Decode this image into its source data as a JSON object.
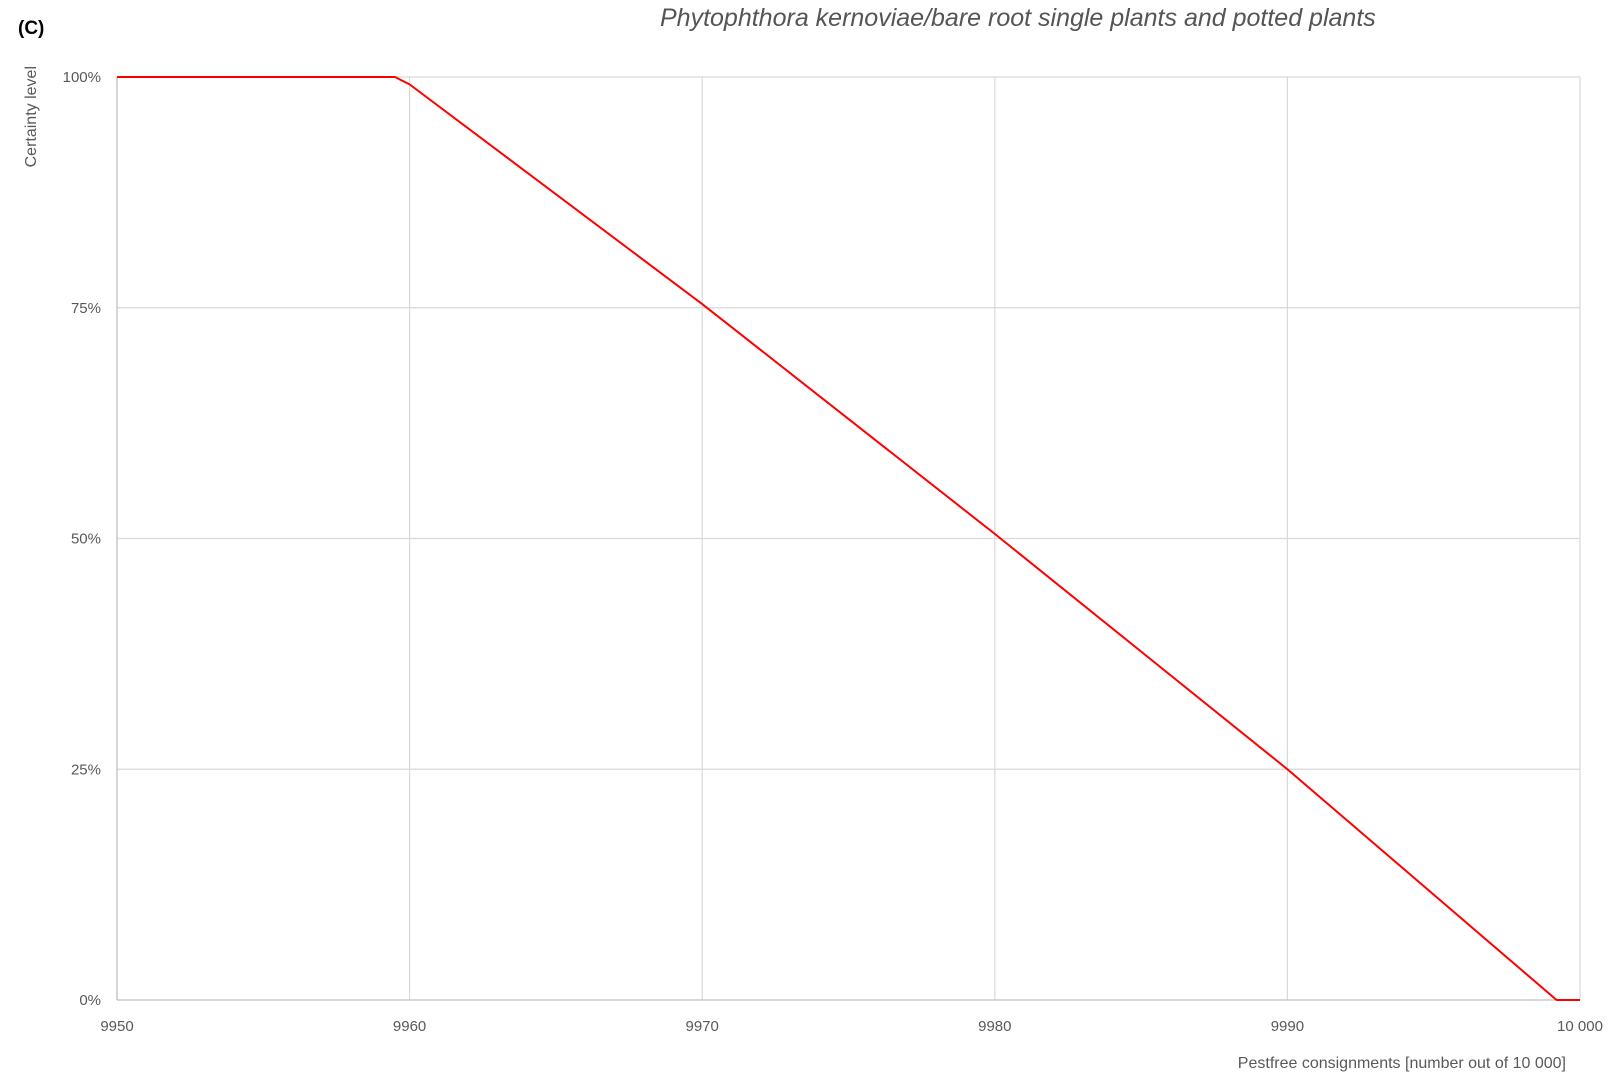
{
  "panel_label": "(C)",
  "chart_data": {
    "type": "line",
    "title": "Phytophthora kernoviae/bare root single plants and potted plants",
    "xlabel": "Pestfree consignments [number out of 10 000]",
    "ylabel": "Certainty level",
    "xlim": [
      9950,
      10000
    ],
    "ylim": [
      0,
      1
    ],
    "x_ticks": [
      9950,
      9960,
      9970,
      9980,
      9990,
      10000
    ],
    "x_tick_labels": [
      "9950",
      "9960",
      "9970",
      "9980",
      "9990",
      "10 000"
    ],
    "y_ticks": [
      0,
      0.25,
      0.5,
      0.75,
      1
    ],
    "y_tick_labels": [
      "0%",
      "25%",
      "50%",
      "75%",
      "100%"
    ],
    "grid": true,
    "series": [
      {
        "color": "#ff0000",
        "x": [
          9950,
          9959.5,
          9960,
          9970,
          9980,
          9990,
          9999.2,
          10000
        ],
        "y": [
          1,
          1,
          0.992,
          0.754,
          0.505,
          0.25,
          0,
          0
        ]
      }
    ]
  }
}
